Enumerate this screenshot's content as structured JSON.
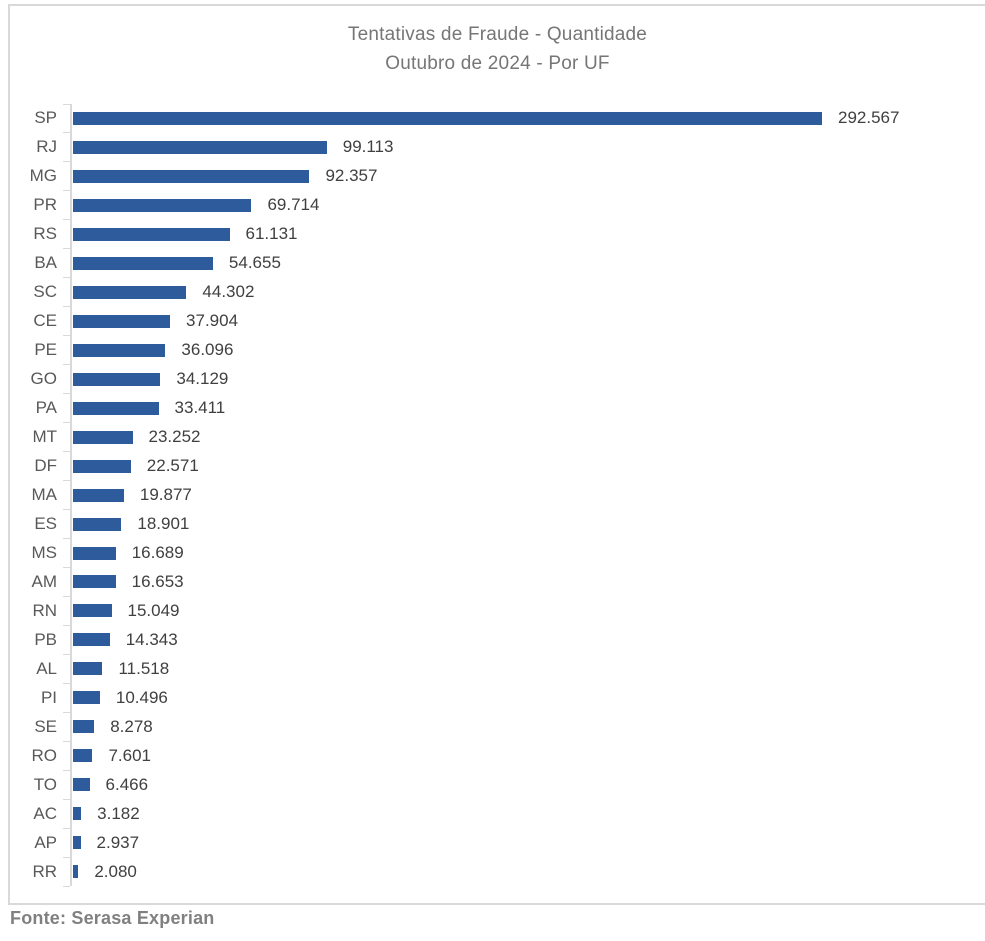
{
  "chart": {
    "title_line1": "Tentativas de Fraude - Quantidade",
    "title_line2": "Outubro de 2024 - Por UF"
  },
  "footer": {
    "source": "Fonte: Serasa Experian"
  },
  "colors": {
    "bar": "#2E5B9C",
    "axis": "#D9D9D9",
    "title_text": "#767676",
    "category_text": "#595959",
    "value_text": "#404040",
    "source_text": "#808080"
  },
  "chart_data": {
    "type": "bar",
    "orientation": "horizontal",
    "title": "Tentativas de Fraude - Quantidade",
    "subtitle": "Outubro de 2024 - Por UF",
    "xlabel": "",
    "ylabel": "UF",
    "xlim": [
      0,
      300000
    ],
    "grid": false,
    "legend": false,
    "value_labels_visible": true,
    "categories": [
      "SP",
      "RJ",
      "MG",
      "PR",
      "RS",
      "BA",
      "SC",
      "CE",
      "PE",
      "GO",
      "PA",
      "MT",
      "DF",
      "MA",
      "ES",
      "MS",
      "AM",
      "RN",
      "PB",
      "AL",
      "PI",
      "SE",
      "RO",
      "TO",
      "AC",
      "AP",
      "RR"
    ],
    "values": [
      292567,
      99113,
      92357,
      69714,
      61131,
      54655,
      44302,
      37904,
      36096,
      34129,
      33411,
      23252,
      22571,
      19877,
      18901,
      16689,
      16653,
      15049,
      14343,
      11518,
      10496,
      8278,
      7601,
      6466,
      3182,
      2937,
      2080
    ],
    "value_labels": [
      "292.567",
      "99.113",
      "92.357",
      "69.714",
      "61.131",
      "54.655",
      "44.302",
      "37.904",
      "36.096",
      "34.129",
      "33.411",
      "23.252",
      "22.571",
      "19.877",
      "18.901",
      "16.689",
      "16.653",
      "15.049",
      "14.343",
      "11.518",
      "10.496",
      "8.278",
      "7.601",
      "6.466",
      "3.182",
      "2.937",
      "2.080"
    ]
  }
}
